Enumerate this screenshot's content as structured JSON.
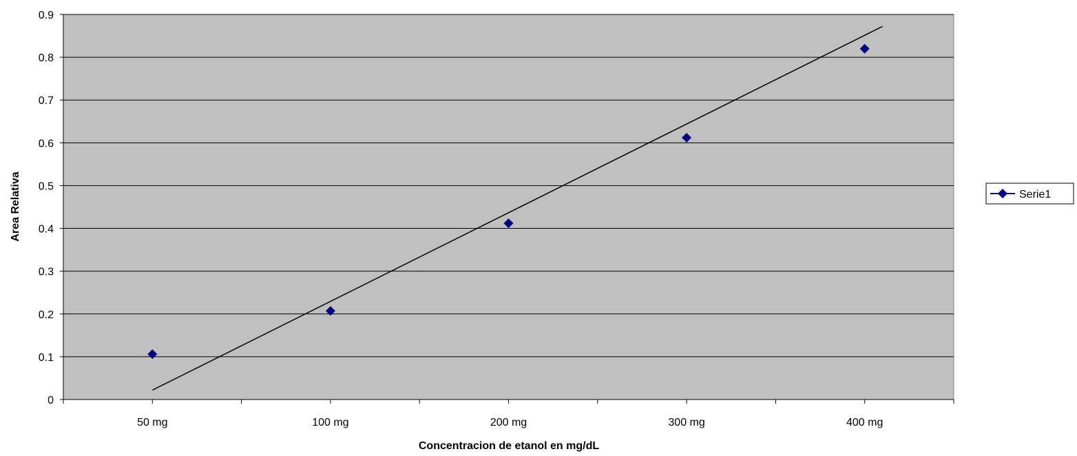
{
  "chart_data": {
    "type": "scatter",
    "title": "",
    "xlabel": "Concentracion de etanol en mg/dL",
    "ylabel": "Area Relativa",
    "categories": [
      "50 mg",
      "100 mg",
      "200 mg",
      "300 mg",
      "400 mg"
    ],
    "ylim": [
      0,
      0.9
    ],
    "yticks": [
      "0",
      "0.1",
      "0.2",
      "0.3",
      "0.4",
      "0.5",
      "0.6",
      "0.7",
      "0.8",
      "0.9"
    ],
    "grid": true,
    "legend_position": "right",
    "series": [
      {
        "name": "Serie1",
        "values": [
          0.106,
          0.207,
          0.412,
          0.612,
          0.82
        ],
        "color": "#000080",
        "marker": "diamond"
      }
    ],
    "trendline": {
      "type": "linear",
      "color": "#000000",
      "start": {
        "category_index": 0,
        "y": 0.022
      },
      "end": {
        "category_index": 4,
        "y": 0.872
      }
    },
    "plot_background": "#c0c0c0",
    "gridline_color": "#000000"
  }
}
